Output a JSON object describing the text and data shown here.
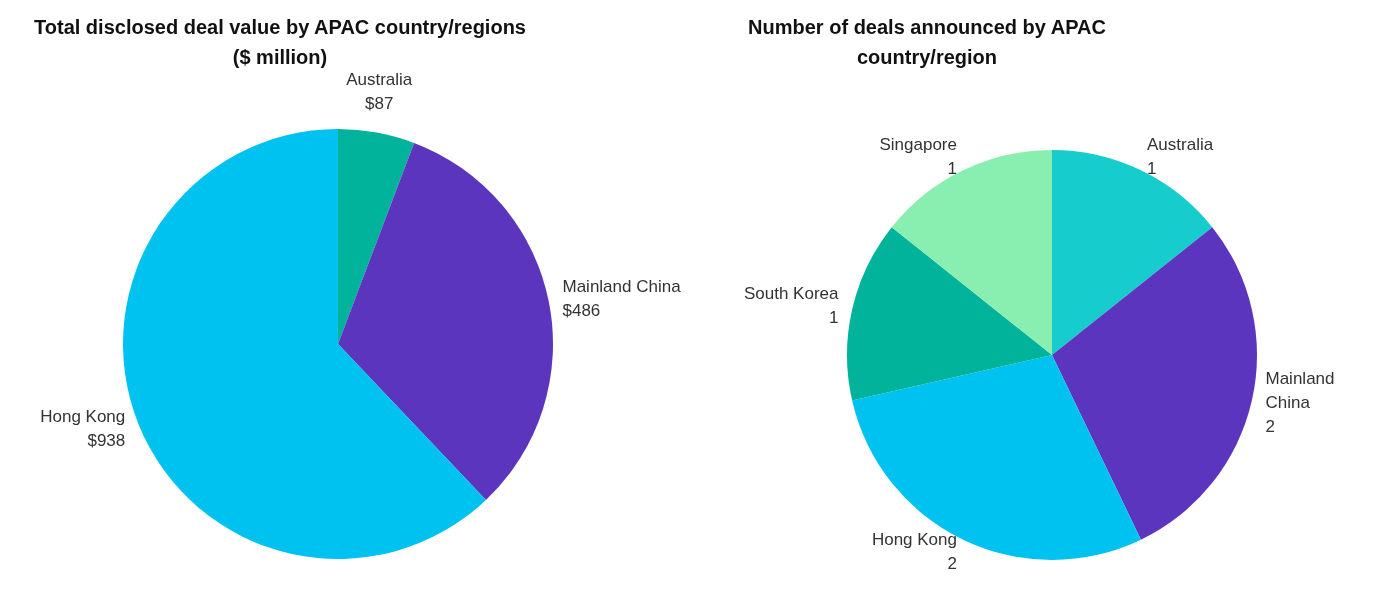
{
  "chart_data": [
    {
      "type": "pie",
      "title": "Total disclosed deal value by APAC country/regions\n($ million)",
      "categories": [
        "Australia",
        "Mainland China",
        "Hong Kong"
      ],
      "values": [
        87,
        486,
        938
      ],
      "colors": [
        "#00b39a",
        "#5c35bf",
        "#00c2f0"
      ],
      "value_labels": [
        "$87",
        "$486",
        "$938"
      ],
      "legend": false
    },
    {
      "type": "pie",
      "title": "Number of deals announced by APAC\ncountry/region",
      "categories": [
        "Australia",
        "Mainland China",
        "Hong Kong",
        "South Korea",
        "Singapore"
      ],
      "values": [
        1,
        2,
        2,
        1,
        1
      ],
      "colors": [
        "#17cccc",
        "#5c35bf",
        "#00c2f0",
        "#00b39a",
        "#88efb0"
      ],
      "data_labels": true,
      "legend": false
    }
  ]
}
